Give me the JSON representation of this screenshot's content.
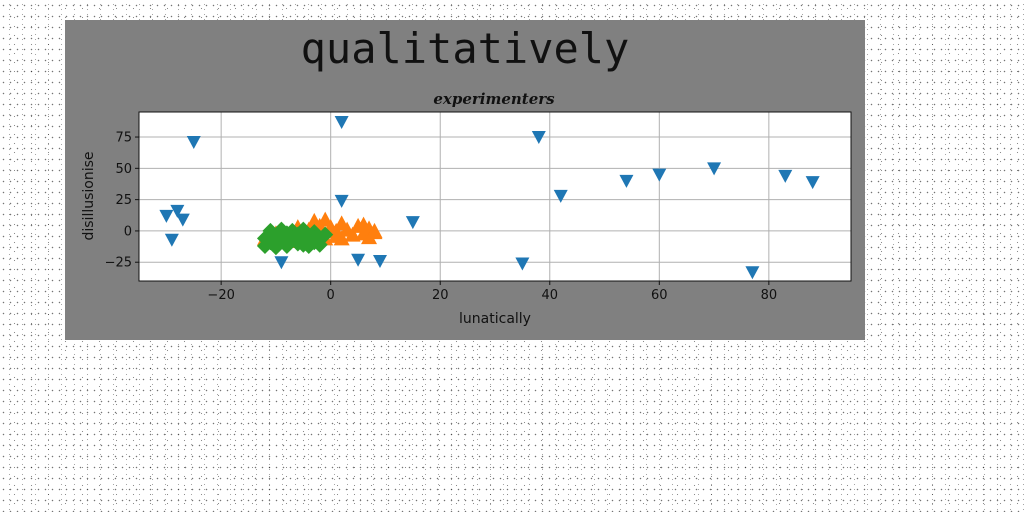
{
  "figure_title": "qualitatively",
  "chart_data": {
    "type": "scatter",
    "title": "experimenters",
    "xlabel": "lunatically",
    "ylabel": "disillusionise",
    "xlim": [
      -35,
      95
    ],
    "ylim": [
      -40,
      95
    ],
    "xticks": [
      -20,
      0,
      20,
      40,
      60,
      80
    ],
    "yticks": [
      -25,
      0,
      25,
      50,
      75
    ],
    "grid": true,
    "series": [
      {
        "marker": "triangle-down",
        "color": "#1f77b4",
        "points": [
          [
            -30,
            12
          ],
          [
            -28,
            16
          ],
          [
            -27,
            9
          ],
          [
            -29,
            -7
          ],
          [
            -25,
            71
          ],
          [
            -9,
            -25
          ],
          [
            2,
            87
          ],
          [
            2,
            24
          ],
          [
            5,
            -23
          ],
          [
            9,
            -24
          ],
          [
            15,
            7
          ],
          [
            35,
            -26
          ],
          [
            38,
            75
          ],
          [
            42,
            28
          ],
          [
            54,
            40
          ],
          [
            60,
            45
          ],
          [
            70,
            50
          ],
          [
            77,
            -33
          ],
          [
            83,
            44
          ],
          [
            88,
            39
          ]
        ]
      },
      {
        "marker": "triangle-up",
        "color": "#ff7f0e",
        "points": [
          [
            -12,
            -6
          ],
          [
            -10,
            -2
          ],
          [
            -8,
            -8
          ],
          [
            -6,
            3
          ],
          [
            -5,
            -3
          ],
          [
            -4,
            1
          ],
          [
            -3,
            8
          ],
          [
            -2,
            4
          ],
          [
            -1,
            9
          ],
          [
            0,
            3
          ],
          [
            1,
            0
          ],
          [
            1,
            -4
          ],
          [
            2,
            6
          ],
          [
            2,
            -6
          ],
          [
            3,
            1
          ],
          [
            4,
            -3
          ],
          [
            5,
            4
          ],
          [
            6,
            -2
          ],
          [
            6,
            5
          ],
          [
            7,
            2
          ],
          [
            7,
            -5
          ],
          [
            8,
            -1
          ],
          [
            8,
            0
          ],
          [
            -7,
            -1
          ],
          [
            -1,
            -6
          ]
        ]
      },
      {
        "marker": "diamond",
        "color": "#2ca02c",
        "points": [
          [
            -12,
            -12
          ],
          [
            -12,
            -6
          ],
          [
            -11,
            0
          ],
          [
            -11,
            -9
          ],
          [
            -10,
            -4
          ],
          [
            -10,
            -13
          ],
          [
            -9,
            1
          ],
          [
            -9,
            -8
          ],
          [
            -8,
            -2
          ],
          [
            -8,
            -12
          ],
          [
            -7,
            0
          ],
          [
            -7,
            -6
          ],
          [
            -6,
            -10
          ],
          [
            -6,
            -3
          ],
          [
            -5,
            1
          ],
          [
            -5,
            -8
          ],
          [
            -4,
            -12
          ],
          [
            -4,
            -4
          ],
          [
            -3,
            -1
          ],
          [
            -3,
            -9
          ],
          [
            -2,
            -6
          ],
          [
            -2,
            -11
          ],
          [
            -1,
            -3
          ],
          [
            -11,
            -3
          ],
          [
            -5,
            -11
          ],
          [
            -8,
            -5
          ],
          [
            -3,
            -6
          ]
        ]
      }
    ]
  }
}
